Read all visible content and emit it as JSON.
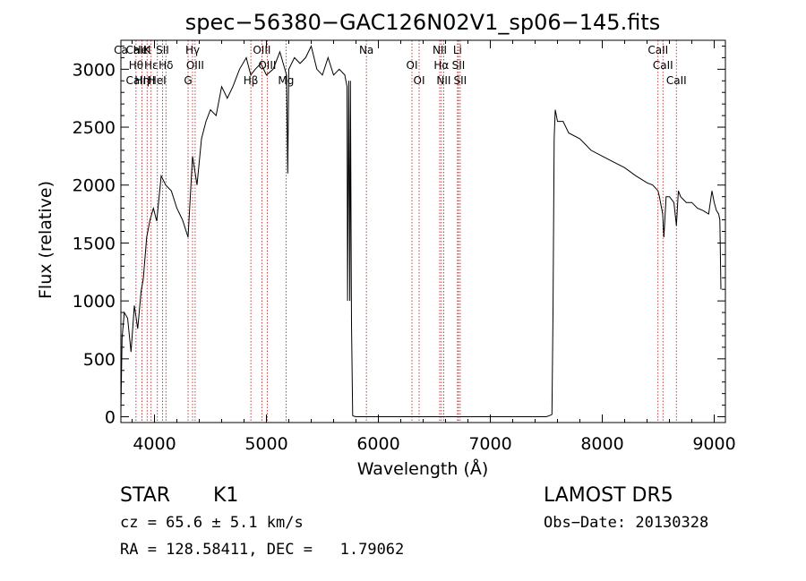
{
  "chart_data": {
    "type": "line",
    "title": "spec−56380−GAC126N02V1_sp06−145.fits",
    "xlabel": "Wavelength (Å)",
    "ylabel": "Flux (relative)",
    "xlim": [
      3700,
      9100
    ],
    "ylim": [
      -50,
      3250
    ],
    "x_ticks": [
      4000,
      5000,
      6000,
      7000,
      8000,
      9000
    ],
    "y_ticks": [
      0,
      500,
      1000,
      1500,
      2000,
      2500,
      3000
    ],
    "x_minor_step": 200,
    "y_minor_step": 100,
    "grid": false,
    "series": [
      {
        "color": "#000000",
        "x": [
          3700,
          3710,
          3730,
          3760,
          3790,
          3820,
          3850,
          3880,
          3900,
          3930,
          3960,
          3990,
          4020,
          4060,
          4100,
          4150,
          4200,
          4250,
          4300,
          4340,
          4380,
          4420,
          4460,
          4500,
          4550,
          4600,
          4650,
          4700,
          4760,
          4820,
          4860,
          4900,
          4950,
          5000,
          5060,
          5120,
          5180,
          5190,
          5200,
          5250,
          5300,
          5350,
          5400,
          5450,
          5500,
          5550,
          5600,
          5650,
          5700,
          5720,
          5725,
          5735,
          5745,
          5750,
          5760,
          5770,
          5780,
          5800,
          6000,
          6500,
          7000,
          7200,
          7400,
          7500,
          7530,
          7550,
          7560,
          7570,
          7580,
          7600,
          7650,
          7700,
          7800,
          7900,
          8000,
          8100,
          8200,
          8300,
          8400,
          8450,
          8498,
          8510,
          8540,
          8550,
          8570,
          8600,
          8640,
          8662,
          8680,
          8700,
          8750,
          8800,
          8850,
          8900,
          8950,
          8980,
          9000,
          9020,
          9040,
          9050,
          9060
        ],
        "y": [
          50,
          680,
          900,
          850,
          560,
          960,
          760,
          1080,
          1190,
          1550,
          1700,
          1800,
          1690,
          2080,
          2000,
          1950,
          1800,
          1700,
          1550,
          2250,
          2000,
          2400,
          2550,
          2650,
          2600,
          2850,
          2750,
          2850,
          3000,
          3100,
          2950,
          3000,
          3050,
          2950,
          3000,
          3150,
          2950,
          2100,
          3000,
          3100,
          3050,
          3100,
          3200,
          3000,
          2950,
          3100,
          2950,
          3000,
          2950,
          2850,
          1000,
          2900,
          1000,
          2900,
          800,
          10,
          5,
          0,
          0,
          0,
          0,
          0,
          0,
          0,
          10,
          20,
          900,
          2400,
          2650,
          2550,
          2550,
          2450,
          2400,
          2300,
          2250,
          2200,
          2150,
          2080,
          2020,
          2000,
          1950,
          1900,
          1750,
          1550,
          1900,
          1900,
          1850,
          1650,
          1950,
          1900,
          1850,
          1850,
          1800,
          1780,
          1750,
          1950,
          1850,
          1780,
          1750,
          1700,
          1100
        ]
      }
    ],
    "reference_lines": [
      {
        "x": 3700,
        "labels": [
          "Ca"
        ]
      },
      {
        "x": 3835,
        "labels": [
          "Hθ",
          "CaII",
          "CaII"
        ]
      },
      {
        "x": 3889,
        "labels": [
          "Hη",
          "HeI"
        ]
      },
      {
        "x": 3934,
        "labels": [
          "K"
        ]
      },
      {
        "x": 3970,
        "labels": [
          "Hε",
          "H"
        ]
      },
      {
        "x": 4026,
        "labels": [
          "HeI"
        ]
      },
      {
        "x": 4072,
        "labels": [
          "SII"
        ]
      },
      {
        "x": 4102,
        "labels": [
          "Hδ"
        ]
      },
      {
        "x": 4300,
        "labels": [
          "G"
        ]
      },
      {
        "x": 4340,
        "labels": [
          "Hγ"
        ]
      },
      {
        "x": 4363,
        "labels": [
          "OIII"
        ]
      },
      {
        "x": 4861,
        "labels": [
          "Hβ"
        ]
      },
      {
        "x": 4959,
        "labels": [
          "OIII"
        ]
      },
      {
        "x": 5007,
        "labels": [
          "OIII"
        ]
      },
      {
        "x": 5175,
        "labels": [
          "Mg"
        ]
      },
      {
        "x": 5893,
        "labels": [
          "Na"
        ]
      },
      {
        "x": 6300,
        "labels": [
          "OI"
        ]
      },
      {
        "x": 6364,
        "labels": [
          "OI"
        ]
      },
      {
        "x": 6548,
        "labels": [
          "NII"
        ]
      },
      {
        "x": 6563,
        "labels": [
          "Hα"
        ]
      },
      {
        "x": 6583,
        "labels": [
          "NII"
        ]
      },
      {
        "x": 6707,
        "labels": [
          "Li"
        ]
      },
      {
        "x": 6716,
        "labels": [
          "SII"
        ]
      },
      {
        "x": 6731,
        "labels": [
          "SII"
        ]
      },
      {
        "x": 8498,
        "labels": [
          "CaII"
        ]
      },
      {
        "x": 8542,
        "labels": [
          "CaII"
        ]
      },
      {
        "x": 8662,
        "labels": [
          "CaII"
        ]
      }
    ]
  },
  "info": {
    "class": "STAR",
    "subclass": "K1",
    "survey": "LAMOST DR5",
    "redshift": "cz = 65.6 ± 5.1 km/s",
    "obs_date": "Obs−Date: 20130328",
    "coords": "RA = 128.58411, DEC =   1.79062"
  }
}
